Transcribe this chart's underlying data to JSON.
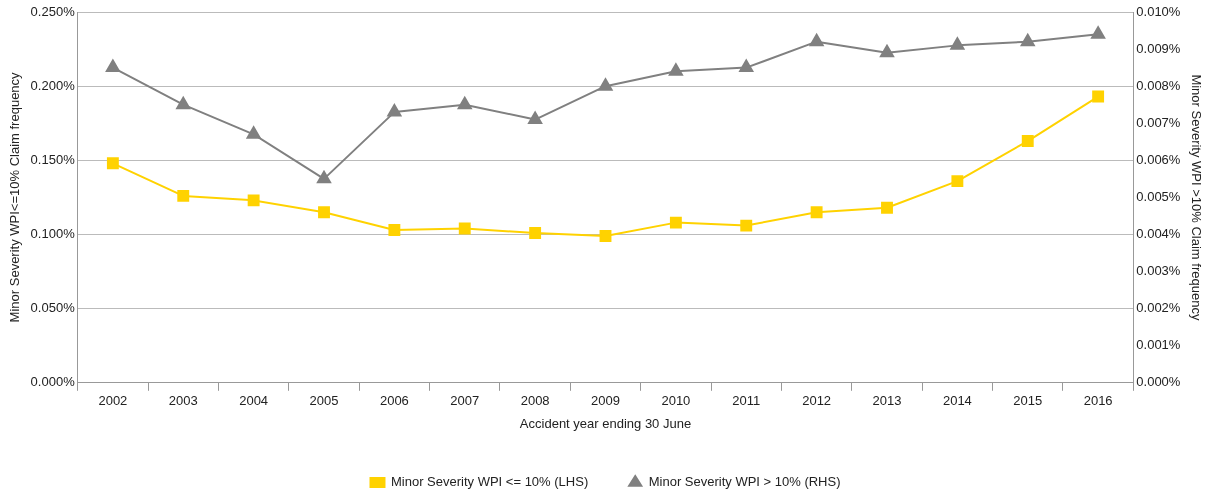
{
  "chart_data": {
    "type": "line",
    "xlabel": "Accident year ending 30 June",
    "ylabel": "Minor Severity WPI<=10% Claim frequency",
    "y2label": "Minor Severity WPI >10% Claim frequency",
    "categories": [
      "2002",
      "2003",
      "2004",
      "2005",
      "2006",
      "2007",
      "2008",
      "2009",
      "2010",
      "2011",
      "2012",
      "2013",
      "2014",
      "2015",
      "2016"
    ],
    "series": [
      {
        "name": "Minor Severity WPI <= 10% (LHS)",
        "color": "#ffd200",
        "marker": "square",
        "values": [
          0.148,
          0.126,
          0.123,
          0.115,
          0.103,
          0.104,
          0.101,
          0.099,
          0.108,
          0.106,
          0.115,
          0.118,
          0.136,
          0.163,
          0.193
        ]
      },
      {
        "name": "Minor Severity WPI > 10% (RHS)",
        "color": "#808080",
        "marker": "triangle",
        "axis": "y2",
        "values": [
          0.0085,
          0.0075,
          0.0067,
          0.0055,
          0.0073,
          0.0075,
          0.0071,
          0.008,
          0.0084,
          0.0085,
          0.0092,
          0.0089,
          0.0091,
          0.0092,
          0.0094
        ]
      }
    ],
    "ylim": [
      0,
      0.25
    ],
    "yticks": [
      {
        "value": 0,
        "label": "0.000%"
      },
      {
        "value": 0.05,
        "label": "0.050%"
      },
      {
        "value": 0.1,
        "label": "0.100%"
      },
      {
        "value": 0.15,
        "label": "0.150%"
      },
      {
        "value": 0.2,
        "label": "0.200%"
      },
      {
        "value": 0.25,
        "label": "0.250%"
      }
    ],
    "y2lim": [
      0,
      0.01
    ],
    "y2ticks": [
      {
        "value": 0,
        "label": "0.000%"
      },
      {
        "value": 0.001,
        "label": "0.001%"
      },
      {
        "value": 0.002,
        "label": "0.002%"
      },
      {
        "value": 0.003,
        "label": "0.003%"
      },
      {
        "value": 0.004,
        "label": "0.004%"
      },
      {
        "value": 0.005,
        "label": "0.005%"
      },
      {
        "value": 0.006,
        "label": "0.006%"
      },
      {
        "value": 0.007,
        "label": "0.007%"
      },
      {
        "value": 0.008,
        "label": "0.008%"
      },
      {
        "value": 0.009,
        "label": "0.009%"
      },
      {
        "value": 0.01,
        "label": "0.010%"
      }
    ],
    "grid": "y",
    "legend": "bottom"
  }
}
